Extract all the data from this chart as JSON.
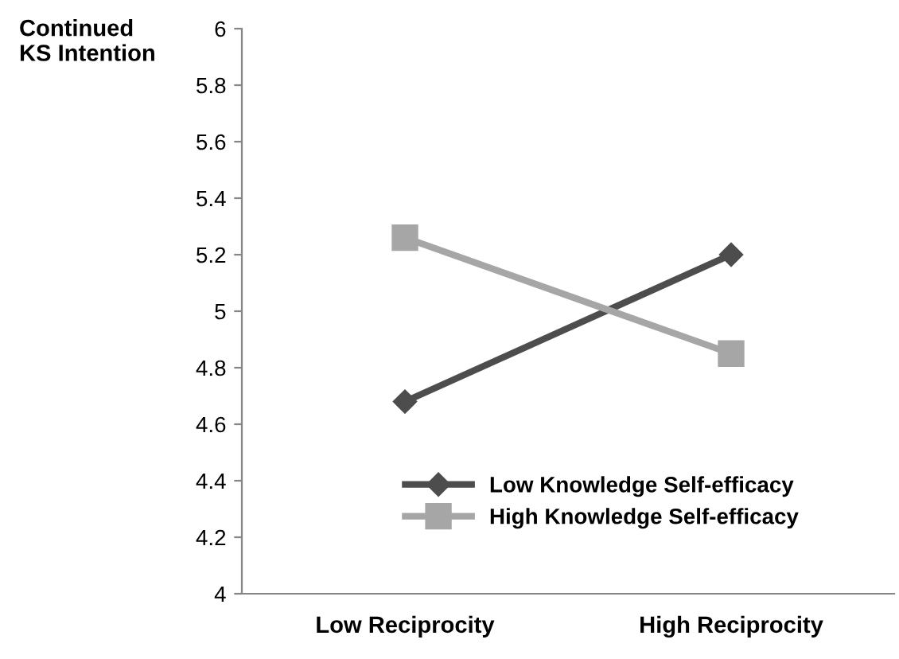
{
  "chart_data": {
    "type": "line",
    "ylabel": "Continued KS Intention",
    "categories": [
      "Low Reciprocity",
      "High Reciprocity"
    ],
    "series": [
      {
        "name": "Low Knowledge Self-efficacy",
        "color": "#4d4d4d",
        "marker": "diamond",
        "values": [
          4.68,
          5.2
        ]
      },
      {
        "name": "High Knowledge Self-efficacy",
        "color": "#a6a6a6",
        "marker": "square",
        "values": [
          5.26,
          4.85
        ]
      }
    ],
    "ylim": [
      4,
      6
    ],
    "yticks": [
      4,
      4.2,
      4.4,
      4.6,
      4.8,
      5,
      5.2,
      5.4,
      5.6,
      5.8,
      6
    ],
    "grid": false,
    "legend": "bottom right",
    "line_style": "solid"
  }
}
